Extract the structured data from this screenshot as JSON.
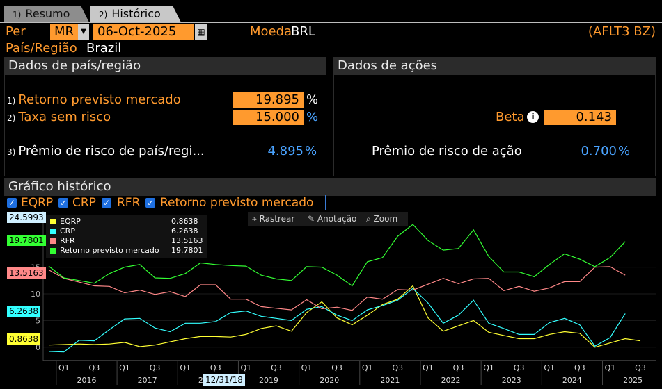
{
  "tabs": [
    {
      "num": "1)",
      "label": "Resumo"
    },
    {
      "num": "2)",
      "label": "Histórico"
    }
  ],
  "controls": {
    "per_label": "Per",
    "per_value": "MR",
    "date_value": "06-Oct-2025",
    "currency_label": "Moeda",
    "currency_value": "BRL",
    "ticker": "(AFLT3 BZ)",
    "country_label": "País/Região",
    "country_value": "Brazil"
  },
  "country_panel": {
    "title": "Dados de país/região",
    "rows": [
      {
        "num": "1)",
        "label": "Retorno previsto mercado",
        "value": "19.895",
        "unit": "%"
      },
      {
        "num": "2)",
        "label": "Taxa sem risco",
        "value": "15.000",
        "unit": "%"
      },
      {
        "num": "3)",
        "label": "Prêmio de risco de país/regi...",
        "value": "4.895",
        "unit": "%"
      }
    ]
  },
  "stock_panel": {
    "title": "Dados de ações",
    "beta_label": "Beta",
    "beta_value": "0.143",
    "premium_label": "Prêmio de risco de ação",
    "premium_value": "0.700",
    "premium_unit": "%"
  },
  "chart_section": {
    "title": "Gráfico histórico",
    "toggles": [
      {
        "label": "EQRP",
        "checked": true
      },
      {
        "label": "CRP",
        "checked": true
      },
      {
        "label": "RFR",
        "checked": true
      },
      {
        "label": "Retorno previsto mercado",
        "checked": true
      }
    ],
    "tools": [
      "Rastrear",
      "Anotação",
      "Zoom"
    ],
    "legend": [
      {
        "name": "EQRP",
        "value": "0.8638",
        "color": "#ffff33"
      },
      {
        "name": "CRP",
        "value": "6.2638",
        "color": "#33ffff"
      },
      {
        "name": "RFR",
        "value": "13.5163",
        "color": "#ff8888"
      },
      {
        "name": "Retorno previsto mercado",
        "value": "19.7801",
        "color": "#33ff33"
      }
    ],
    "axis_tags": [
      {
        "text": "24.5993",
        "bg": "#cfefff"
      },
      {
        "text": "19.7801",
        "bg": "#33ff33"
      },
      {
        "text": "13.5163",
        "bg": "#ff8888"
      },
      {
        "text": "6.2638",
        "bg": "#33ffff"
      },
      {
        "text": "0.8638",
        "bg": "#ffff33"
      }
    ],
    "cursor_date": "12/31/18"
  },
  "chart_data": {
    "type": "line",
    "x": [
      "2015Q4",
      "2016Q1",
      "2016Q2",
      "2016Q3",
      "2016Q4",
      "2017Q1",
      "2017Q2",
      "2017Q3",
      "2017Q4",
      "2018Q1",
      "2018Q2",
      "2018Q3",
      "2018Q4",
      "2019Q1",
      "2019Q2",
      "2019Q3",
      "2019Q4",
      "2020Q1",
      "2020Q2",
      "2020Q3",
      "2020Q4",
      "2021Q1",
      "2021Q2",
      "2021Q3",
      "2021Q4",
      "2022Q1",
      "2022Q2",
      "2022Q3",
      "2022Q4",
      "2023Q1",
      "2023Q2",
      "2023Q3",
      "2023Q4",
      "2024Q1",
      "2024Q2",
      "2024Q3",
      "2024Q4",
      "2025Q1",
      "2025Q2",
      "2025Q3"
    ],
    "series": [
      {
        "name": "EQRP",
        "color": "#ffff33",
        "values": [
          0.4,
          0.5,
          0.6,
          0.5,
          0.6,
          0.9,
          0.1,
          0.4,
          1.0,
          1.6,
          2.0,
          2.0,
          1.9,
          2.4,
          3.5,
          4.0,
          3.0,
          6.5,
          8.5,
          5.5,
          4.2,
          6.0,
          8.0,
          9.0,
          11.5,
          5.5,
          3.0,
          4.0,
          5.0,
          2.8,
          2.2,
          1.6,
          1.6,
          2.4,
          2.9,
          2.6,
          0.0,
          0.8,
          1.6,
          1.2
        ]
      },
      {
        "name": "CRP",
        "color": "#33ffff",
        "values": [
          -0.8,
          -0.9,
          1.3,
          1.2,
          3.3,
          5.3,
          5.4,
          3.6,
          2.9,
          4.5,
          4.5,
          4.8,
          6.5,
          6.8,
          5.8,
          5.4,
          5.0,
          7.1,
          7.6,
          6.0,
          5.0,
          7.0,
          7.8,
          8.8,
          11.0,
          8.3,
          4.5,
          6.0,
          8.8,
          4.5,
          3.5,
          2.4,
          2.4,
          4.6,
          5.4,
          4.2,
          0.2,
          1.8,
          6.3,
          null
        ]
      },
      {
        "name": "RFR",
        "color": "#ff8888",
        "values": [
          14.5,
          12.9,
          12.2,
          11.5,
          11.4,
          10.2,
          10.7,
          9.9,
          10.4,
          9.5,
          11.7,
          11.7,
          9.0,
          9.0,
          7.6,
          7.3,
          7.0,
          8.9,
          7.2,
          7.5,
          6.9,
          9.4,
          9.0,
          10.8,
          10.7,
          11.8,
          12.9,
          11.9,
          12.8,
          12.9,
          10.6,
          11.4,
          10.5,
          11.1,
          12.3,
          12.3,
          15.0,
          15.1,
          13.5,
          null
        ]
      },
      {
        "name": "Retorno previsto mercado",
        "color": "#33ff33",
        "values": [
          15.2,
          13.0,
          12.5,
          12.0,
          13.8,
          15.0,
          15.5,
          13.0,
          12.9,
          13.8,
          15.8,
          15.5,
          15.3,
          15.2,
          13.5,
          12.8,
          12.5,
          15.1,
          15.0,
          13.5,
          11.5,
          16.0,
          16.8,
          20.8,
          23.0,
          20.0,
          18.2,
          18.5,
          22.0,
          17.0,
          14.1,
          14.1,
          13.2,
          15.5,
          17.5,
          16.5,
          15.1,
          16.8,
          19.8,
          null
        ]
      }
    ],
    "yticks": [
      0,
      5,
      10,
      15
    ],
    "ylim": [
      -2.5,
      25.5
    ],
    "quarter_ticks": [
      "Q1",
      "Q3"
    ],
    "year_labels": [
      "2016",
      "2017",
      "2018",
      "2019",
      "2020",
      "2021",
      "2022",
      "2023",
      "2024",
      "2025"
    ]
  }
}
